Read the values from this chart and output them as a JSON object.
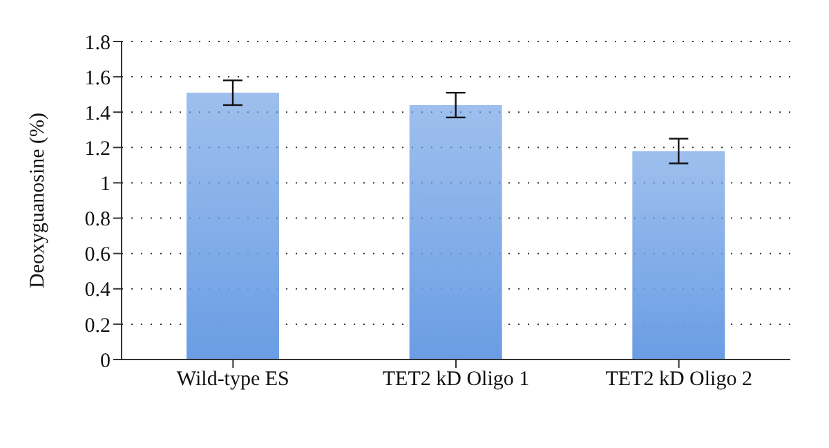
{
  "chart_data": {
    "type": "bar",
    "ylabel": "Deoxyguanosine (%)",
    "categories": [
      "Wild-type ES",
      "TET2 kD Oligo 1",
      "TET2 kD Oligo 2"
    ],
    "values": [
      1.51,
      1.44,
      1.18
    ],
    "errors": [
      0.07,
      0.07,
      0.07
    ],
    "color": "#6a9de4",
    "ylim": [
      0,
      1.8
    ],
    "yticks": [
      0,
      0.2,
      0.4,
      0.6,
      0.8,
      1,
      1.2,
      1.4,
      1.6,
      1.8
    ],
    "grid": "y"
  }
}
